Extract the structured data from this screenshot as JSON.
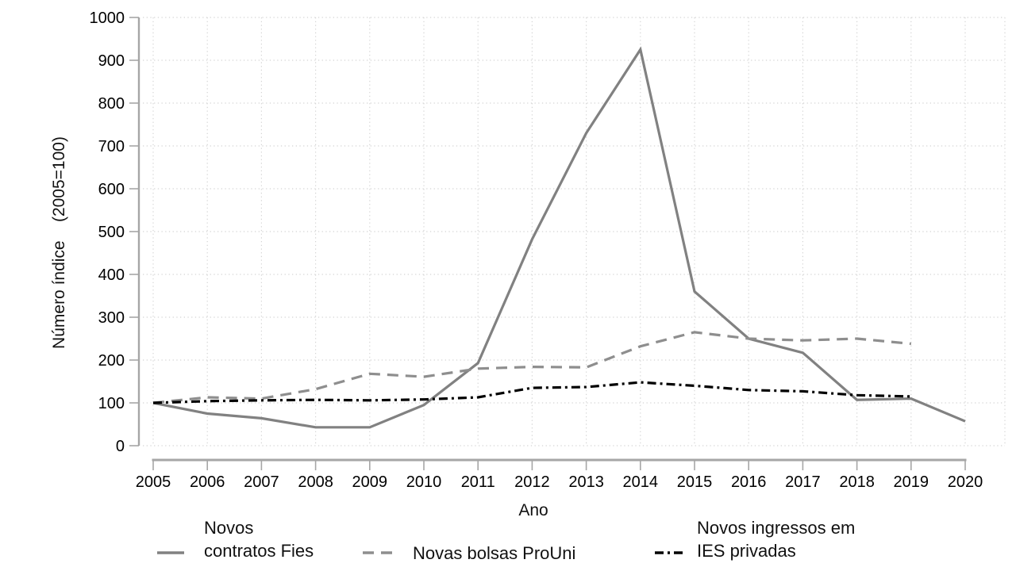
{
  "page": {
    "background": "#ffffff"
  },
  "colors": {
    "grid": "#d4d4d4",
    "axis": "#a6a6a6",
    "text": "#000000"
  },
  "chart_data": {
    "type": "line",
    "title": "",
    "xlabel": "Ano",
    "ylabel": "Número índice    (2005=100)",
    "xlim": [
      2005,
      2020
    ],
    "ylim": [
      0,
      1000
    ],
    "xticks": [
      2005,
      2006,
      2007,
      2008,
      2009,
      2010,
      2011,
      2012,
      2013,
      2014,
      2015,
      2016,
      2017,
      2018,
      2019,
      2020
    ],
    "yticks": [
      0,
      100,
      200,
      300,
      400,
      500,
      600,
      700,
      800,
      900,
      1000
    ],
    "grid": "dotted-both",
    "legend_position": "bottom",
    "series": [
      {
        "name": "Novos\ncontratos Fies",
        "line_style": "solid",
        "color": "#818181",
        "x": [
          2005,
          2006,
          2007,
          2008,
          2009,
          2010,
          2011,
          2012,
          2013,
          2014,
          2015,
          2016,
          2017,
          2018,
          2019,
          2020
        ],
        "values": [
          100,
          75,
          64,
          43,
          43,
          95,
          193,
          482,
          730,
          925,
          360,
          250,
          217,
          107,
          110,
          57
        ]
      },
      {
        "name": "Novas bolsas ProUni",
        "line_style": "dashed",
        "color": "#8e8e8e",
        "x": [
          2005,
          2006,
          2007,
          2008,
          2009,
          2010,
          2011,
          2012,
          2013,
          2014,
          2015,
          2016,
          2017,
          2018,
          2019
        ],
        "values": [
          100,
          113,
          110,
          132,
          168,
          161,
          180,
          184,
          183,
          232,
          265,
          250,
          246,
          250,
          238
        ]
      },
      {
        "name": "Novos ingressos em\nIES privadas",
        "line_style": "dashdot",
        "color": "#000000",
        "x": [
          2005,
          2006,
          2007,
          2008,
          2009,
          2010,
          2011,
          2012,
          2013,
          2014,
          2015,
          2016,
          2017,
          2018,
          2019
        ],
        "values": [
          100,
          104,
          106,
          107,
          106,
          108,
          113,
          135,
          137,
          148,
          140,
          130,
          127,
          118,
          115
        ]
      }
    ]
  }
}
